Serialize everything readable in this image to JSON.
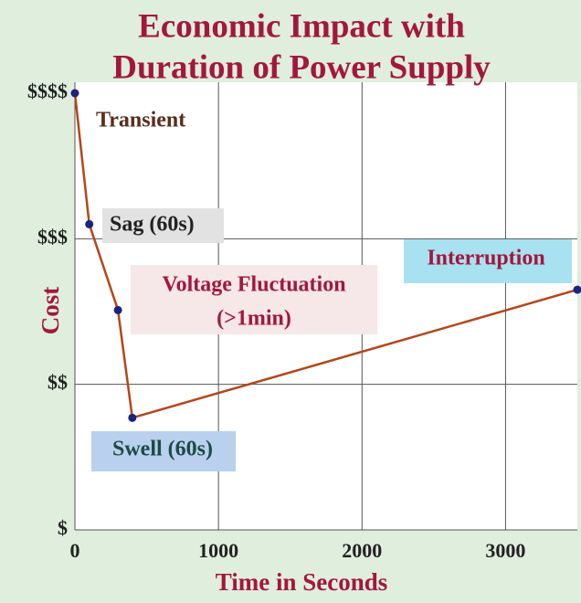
{
  "chart_data": {
    "type": "line",
    "title": [
      "Economic Impact with",
      "Duration of Power Supply"
    ],
    "x_label": "Time in Seconds",
    "y_label": "Cost",
    "x": [
      0,
      100,
      300,
      400,
      3500
    ],
    "series": [
      {
        "color": "#b5451b",
        "marker_color": "#1a237e",
        "values": [
          3,
          2.1,
          1.51,
          0.77,
          1.65
        ]
      }
    ],
    "xlim": [
      0,
      3500
    ],
    "xticks": [
      0,
      1000,
      2000,
      3000
    ],
    "ylim": [
      0,
      3
    ],
    "yticks": [
      {
        "value": 0,
        "label": "$"
      },
      {
        "value": 1,
        "label": "$$"
      },
      {
        "value": 2,
        "label": "$$$"
      },
      {
        "value": 3,
        "label": "$$$$"
      }
    ],
    "grid": true,
    "annotations": [
      "Transient",
      "Sag (60s)",
      "Voltage Fluctuation",
      "(>1min)",
      "Swell (60s)",
      "Interruption"
    ]
  }
}
